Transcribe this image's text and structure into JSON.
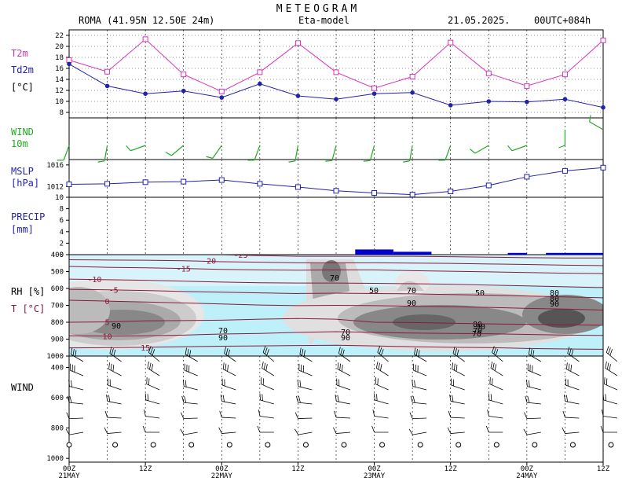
{
  "header": {
    "title": "METEOGRAM",
    "location": "ROMA (41.95N 12.50E  24m)",
    "model": "Eta-model",
    "date": "21.05.2025.",
    "run": "00UTC+084h"
  },
  "colors": {
    "t2m": "#d633b8",
    "td2m": "#2222aa",
    "wind10": "#22aa22",
    "mslp": "#2222aa",
    "precip": "#0000cc",
    "temp_contour": "#8b1a3a",
    "rh_base": "#bdf0f8"
  },
  "chart_data": [
    {
      "type": "line",
      "panel": "temperature",
      "label_t2m": "T2m",
      "label_td2m": "Td2m",
      "unit": "[°C]",
      "yticks": [
        "22",
        "20",
        "18",
        "16",
        "14",
        "12",
        "10",
        "8"
      ],
      "ylim": [
        7,
        23
      ],
      "x_hours": [
        0,
        6,
        12,
        18,
        24,
        30,
        36,
        42,
        48,
        54,
        60,
        66,
        72,
        78,
        84
      ],
      "series": [
        {
          "name": "T2m",
          "values": [
            17.5,
            15.4,
            21.3,
            14.9,
            11.8,
            15.3,
            20.6,
            15.3,
            12.4,
            14.5,
            20.7,
            15.1,
            12.8,
            14.9,
            21.1
          ]
        },
        {
          "name": "Td2m",
          "values": [
            16.8,
            12.8,
            11.4,
            11.9,
            10.7,
            13.2,
            11.0,
            10.4,
            11.4,
            11.6,
            9.3,
            10.0,
            9.9,
            10.4,
            8.9
          ]
        }
      ]
    },
    {
      "type": "line",
      "panel": "wind10m",
      "label_line1": "WIND",
      "label_line2": "10m"
    },
    {
      "type": "line",
      "panel": "mslp",
      "label_line1": "MSLP",
      "label_line2": "[hPa]",
      "yticks": [
        "1016",
        "1012"
      ],
      "ylim": [
        1010,
        1017
      ],
      "x_hours": [
        0,
        6,
        12,
        18,
        24,
        30,
        36,
        42,
        48,
        54,
        60,
        66,
        72,
        78,
        84
      ],
      "values": [
        1012.4,
        1012.5,
        1012.8,
        1012.9,
        1013.2,
        1012.5,
        1011.9,
        1011.2,
        1010.8,
        1010.5,
        1011.1,
        1012.2,
        1013.8,
        1014.9,
        1015.5
      ]
    },
    {
      "type": "bar",
      "panel": "precip",
      "label_line1": "PRECIP",
      "label_line2": "[mm]",
      "yticks": [
        "10",
        "8",
        "6",
        "4",
        "2",
        "0"
      ],
      "ylim": [
        0,
        10
      ],
      "bars": [
        {
          "from": 45,
          "to": 51,
          "value": 0.9
        },
        {
          "from": 51,
          "to": 57,
          "value": 0.5
        },
        {
          "from": 69,
          "to": 72,
          "value": 0.3
        },
        {
          "from": 75,
          "to": 84,
          "value": 0.3
        }
      ]
    },
    {
      "type": "heatmap",
      "panel": "rh_t",
      "label_line1": "RH [%]",
      "label_line2": "T [°C]",
      "yticks": [
        "400",
        "500",
        "600",
        "700",
        "800",
        "900",
        "1000"
      ],
      "ylim": [
        1000,
        400
      ],
      "t_contours": [
        {
          "label": "-25",
          "p": [
            395,
            398,
            396,
            398,
            400,
            405,
            410,
            410,
            410,
            410,
            412,
            415,
            418,
            420,
            420
          ],
          "label_at": 27
        },
        {
          "label": "-20",
          "p": [
            430,
            432,
            433,
            436,
            442,
            445,
            448,
            448,
            448,
            450,
            452,
            455,
            458,
            462,
            465
          ],
          "label_at": 22
        },
        {
          "label": "-15",
          "p": [
            470,
            475,
            478,
            482,
            487,
            490,
            492,
            490,
            490,
            495,
            498,
            502,
            506,
            510,
            512
          ],
          "label_at": 18
        },
        {
          "label": "-10",
          "p": [
            545,
            548,
            552,
            557,
            562,
            566,
            568,
            568,
            570,
            572,
            575,
            580,
            585,
            590,
            595
          ],
          "label_at": 4
        },
        {
          "label": "-5",
          "p": [
            605,
            608,
            612,
            618,
            622,
            626,
            630,
            628,
            630,
            632,
            636,
            640,
            645,
            650,
            655
          ],
          "label_at": 7
        },
        {
          "label": "0",
          "p": [
            670,
            675,
            680,
            686,
            692,
            698,
            702,
            700,
            702,
            705,
            708,
            712,
            718,
            722,
            728
          ],
          "label_at": 6
        },
        {
          "label": "5",
          "p": [
            800,
            798,
            792,
            790,
            788,
            782,
            778,
            782,
            800,
            802,
            806,
            810,
            812,
            815,
            818
          ],
          "label_at": 6
        },
        {
          "label": "10",
          "p": [
            880,
            882,
            880,
            876,
            870,
            866,
            860,
            856,
            860,
            864,
            866,
            868,
            872,
            876,
            878
          ],
          "label_at": 6
        },
        {
          "label": "15",
          "p": [
            952,
            950,
            948,
            945,
            942,
            940,
            938,
            936,
            940,
            945,
            948,
            950,
            955,
            958,
            960
          ],
          "label_at": 12
        }
      ],
      "rh_labels": [
        "70",
        "90",
        "70",
        "90",
        "50",
        "70",
        "70",
        "90",
        "70",
        "50",
        "90",
        "70",
        "80",
        "90",
        "80",
        "80",
        "90"
      ]
    },
    {
      "type": "scatter",
      "panel": "wind_profile",
      "label": "WIND",
      "yticks": [
        "400",
        "600",
        "800",
        "1000"
      ]
    }
  ],
  "xaxis": {
    "ticks": [
      "00Z",
      "12Z",
      "00Z",
      "12Z",
      "00Z",
      "12Z",
      "00Z",
      "12Z"
    ],
    "dates": [
      "21MAY",
      "22MAY",
      "23MAY",
      "24MAY"
    ]
  }
}
